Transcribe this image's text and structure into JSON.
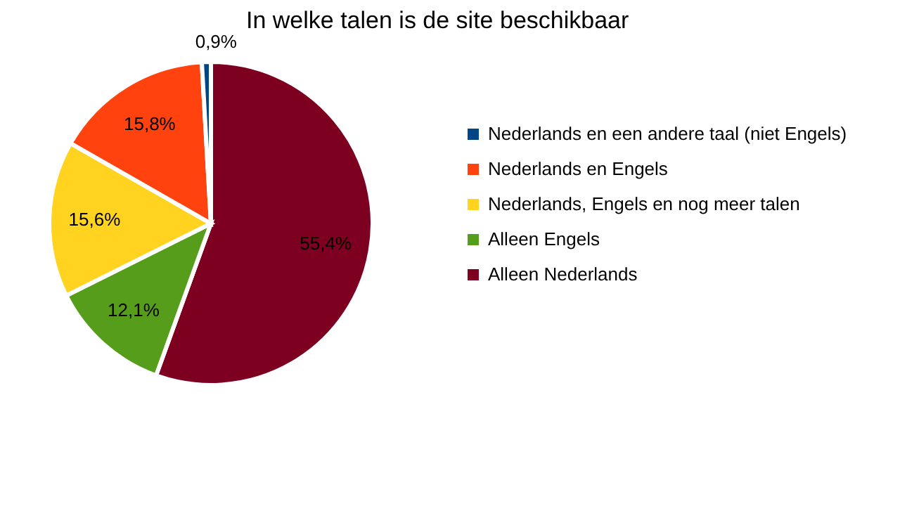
{
  "chart_data": {
    "type": "pie",
    "title": "In welke talen is de site beschikbaar",
    "categories": [
      "Nederlands en een andere taal (niet Engels)",
      "Nederlands en Engels",
      "Nederlands, Engels en nog meer talen",
      "Alleen Engels",
      "Alleen Nederlands"
    ],
    "values": [
      0.9,
      15.8,
      15.6,
      12.1,
      55.4
    ],
    "value_labels": [
      "0,9%",
      "15,8%",
      "15,6%",
      "12,1%",
      "55,4%"
    ],
    "colors": [
      "#004586",
      "#ff420e",
      "#ffd320",
      "#579d1c",
      "#7e0021"
    ],
    "legend": "right"
  }
}
